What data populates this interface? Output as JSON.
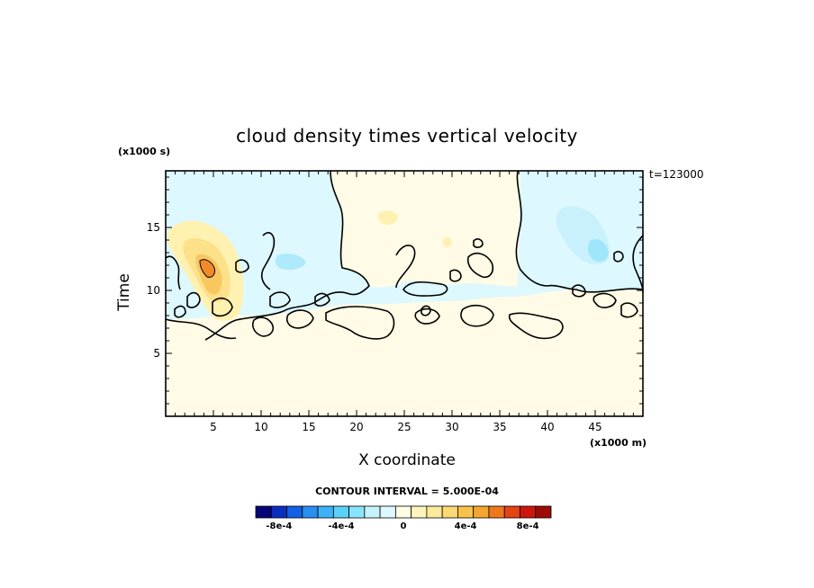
{
  "chart_data": {
    "type": "heatmap",
    "title": "cloud density times vertical velocity",
    "xlabel": "X coordinate",
    "ylabel": "Time",
    "x_scale_note": "(x1000 m)",
    "y_scale_note": "(x1000 s)",
    "time_stamp": "t=123000",
    "xlim": [
      0,
      50
    ],
    "ylim": [
      0,
      19.5
    ],
    "x_ticks": [
      5,
      10,
      15,
      20,
      25,
      30,
      35,
      40,
      45
    ],
    "y_ticks": [
      5,
      10,
      15
    ],
    "contour_interval_text": "CONTOUR INTERVAL = 5.000E-04",
    "colorbar": {
      "colors": [
        "#06067a",
        "#0a2ec0",
        "#1260e6",
        "#2a8ef2",
        "#3db2f7",
        "#5bd0f8",
        "#8ae4fb",
        "#c4f2fd",
        "#ddf8ff",
        "#fffbe6",
        "#fff4bb",
        "#fde99a",
        "#fbd973",
        "#f8c24b",
        "#f5a62e",
        "#f0781b",
        "#e44413",
        "#cc160d",
        "#9e0a08"
      ],
      "tick_labels": [
        "-8e-4",
        "-4e-4",
        "0",
        "4e-4",
        "8e-4"
      ],
      "tick_values": [
        -0.0008,
        -0.0004,
        0,
        0.0004,
        0.0008
      ],
      "range": [
        -0.00095,
        0.00095
      ]
    },
    "regions": [
      {
        "name": "upper-left negative field",
        "value": -0.0001,
        "x_range": [
          0,
          17
        ],
        "y_range": [
          11.5,
          19.5
        ]
      },
      {
        "name": "upper-centre negative field",
        "value": -0.0001,
        "x_range": [
          17,
          38
        ],
        "y_range": [
          12,
          19.5
        ]
      },
      {
        "name": "upper-right negative field",
        "value": -0.0002,
        "x_range": [
          37,
          50
        ],
        "y_range": [
          10,
          19.5
        ]
      },
      {
        "name": "positive core near x=5",
        "value": 0.0006,
        "x_range": [
          3,
          9
        ],
        "y_range": [
          9,
          16
        ]
      },
      {
        "name": "strong core maximum",
        "value": 0.0008,
        "x_range": [
          4.5,
          6.5
        ],
        "y_range": [
          11,
          13
        ]
      }
    ]
  }
}
